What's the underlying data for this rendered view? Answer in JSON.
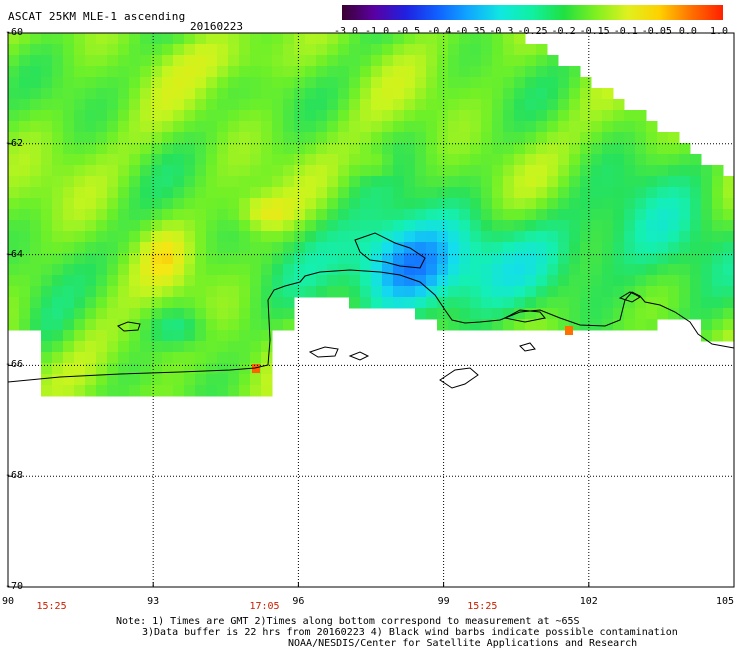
{
  "header": {
    "title": "ASCAT 25KM MLE-1 ascending",
    "date": "20160223"
  },
  "colorbar": {
    "tick_labels": [
      "-3.0",
      "-1.0",
      "-0.5",
      "-0.4",
      "-0.35",
      "-0.3",
      "-0.25",
      "-0.2",
      "-0.15",
      "-0.1",
      "-0.05",
      "0.0",
      "1.0"
    ],
    "colors": [
      "#3a0030",
      "#5a00a0",
      "#2020e0",
      "#1060ff",
      "#10a8ff",
      "#10e8e0",
      "#10f0a0",
      "#20e040",
      "#80f020",
      "#e0f020",
      "#ffd000",
      "#ff7000",
      "#ff2000"
    ]
  },
  "map": {
    "lat_labels": [
      "-60",
      "-62",
      "-64",
      "-66",
      "-68",
      "-70"
    ],
    "lon_labels": [
      "90",
      "93",
      "96",
      "99",
      "102",
      "105"
    ],
    "time_labels": [
      {
        "text": "15:25",
        "lon": 90.9
      },
      {
        "text": "17:05",
        "lon": 95.3
      },
      {
        "text": "15:25",
        "lon": 99.8
      }
    ],
    "lat_range": [
      -70,
      -60
    ],
    "lon_range": [
      90,
      105
    ]
  },
  "footer": {
    "line1": "Note: 1) Times are GMT 2)Times along bottom correspond to measurement at ~65S",
    "line2": "3)Data buffer is 22 hrs from 20160223 4) Black wind barbs indicate possible contamination",
    "line3": "NOAA/NESDIS/Center for Satellite Applications and Research"
  }
}
